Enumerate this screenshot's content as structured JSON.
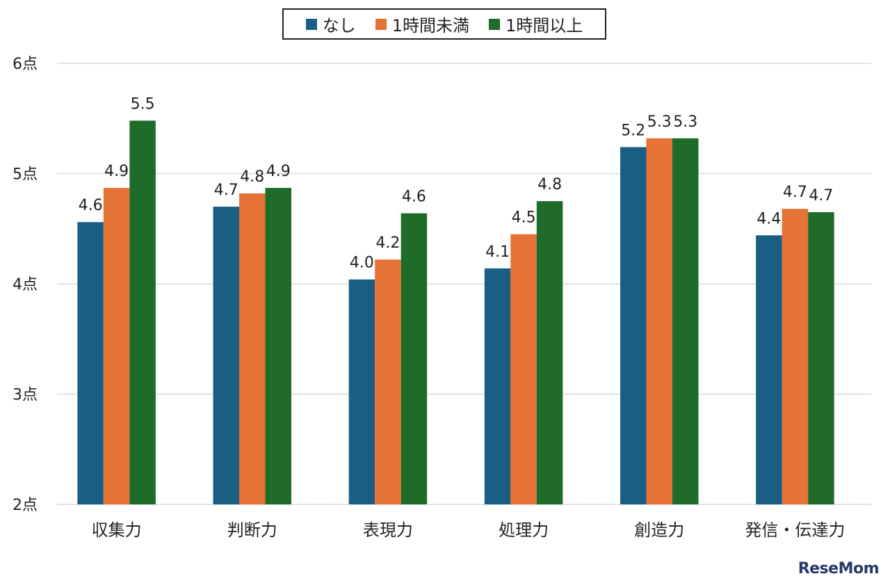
{
  "chart_data": {
    "type": "bar",
    "categories": [
      "収集力",
      "判断力",
      "表現力",
      "処理力",
      "創造力",
      "発信・伝達力"
    ],
    "series": [
      {
        "name": "なし",
        "color": "#1a5e84",
        "values": [
          4.56,
          4.7,
          4.04,
          4.14,
          5.24,
          4.44
        ],
        "labels": [
          "4.6",
          "4.7",
          "4.0",
          "4.1",
          "5.2",
          "4.4"
        ]
      },
      {
        "name": "1時間未満",
        "color": "#e57335",
        "values": [
          4.87,
          4.82,
          4.22,
          4.45,
          5.32,
          4.68
        ],
        "labels": [
          "4.9",
          "4.8",
          "4.2",
          "4.5",
          "5.3",
          "4.7"
        ]
      },
      {
        "name": "1時間以上",
        "color": "#1f6b2a",
        "values": [
          5.48,
          4.87,
          4.64,
          4.75,
          5.32,
          4.65
        ],
        "labels": [
          "5.5",
          "4.9",
          "4.6",
          "4.8",
          "5.3",
          "4.7"
        ]
      }
    ],
    "ylim": [
      2,
      6
    ],
    "yticks": [
      "2点",
      "3点",
      "4点",
      "5点",
      "6点"
    ],
    "grid": true,
    "legend_position": "top"
  },
  "watermark": "ReseMom"
}
